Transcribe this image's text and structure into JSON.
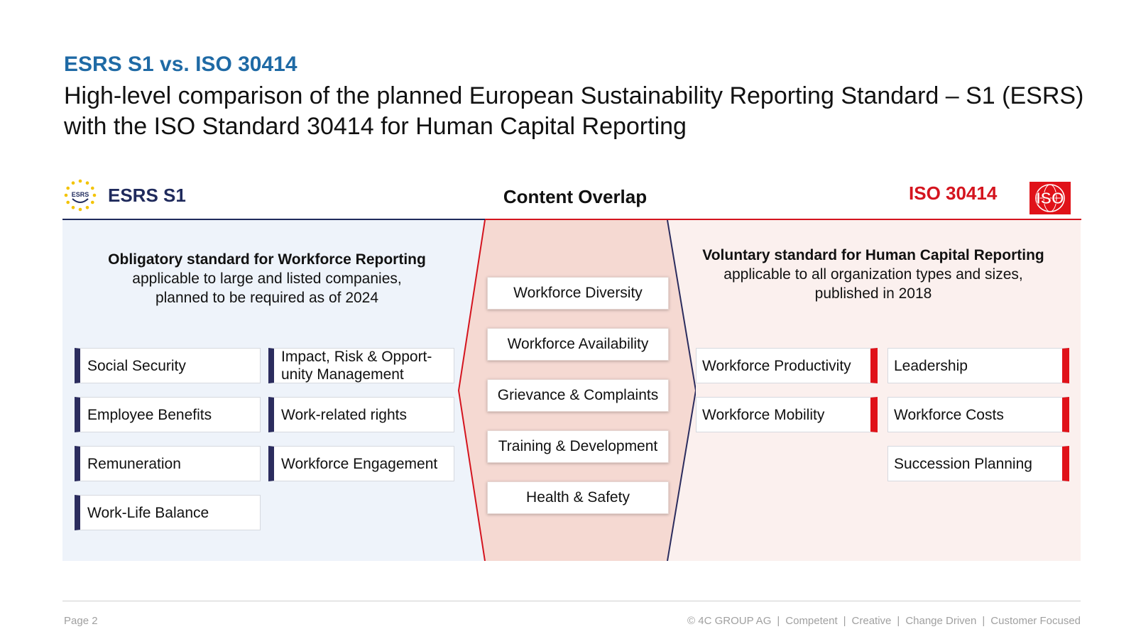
{
  "header": {
    "subtitle": "ESRS S1 vs. ISO 30414",
    "title": "High-level comparison of the planned European Sustainability Reporting Standard – S1 (ESRS) with the ISO Standard 30414 for Human Capital Reporting"
  },
  "columns": {
    "left_title": "ESRS S1",
    "left_logo_text": "ESRS",
    "center_title": "Content Overlap",
    "right_title": "ISO 30414",
    "right_logo_text": "ISO"
  },
  "left": {
    "intro_bold": "Obligatory standard for Workforce Reporting",
    "intro_line1": "applicable to large and listed companies,",
    "intro_line2": "planned to be required as of 2024",
    "items": [
      "Social Security",
      "Impact, Risk & Opport- unity Management",
      "Employee Benefits",
      "Work-related rights",
      "Remuneration",
      "Workforce Engagement",
      "Work-Life Balance"
    ]
  },
  "overlap": {
    "items": [
      "Workforce Diversity",
      "Workforce Availability",
      "Grievance & Complaints",
      "Training & Development",
      "Health & Safety"
    ]
  },
  "right": {
    "intro_bold": "Voluntary standard for Human Capital Reporting",
    "intro_line1": "applicable to all organization types and sizes,",
    "intro_line2": "published in 2018",
    "items": [
      "Workforce Productivity",
      "Leadership",
      "Workforce Mobility",
      "Workforce Costs",
      "Succession Planning"
    ]
  },
  "footer": {
    "page": "Page 2",
    "copyright": "© 4C GROUP AG",
    "tags": [
      "Competent",
      "Creative",
      "Change Driven",
      "Customer Focused"
    ]
  },
  "colors": {
    "accent_blue": "#1f6aa5",
    "esrs_navy": "#2b2c5e",
    "iso_red": "#e01219",
    "left_bg": "#eef3fa",
    "right_bg": "#fbf0ee",
    "overlap_bg": "#f5d9d2"
  }
}
